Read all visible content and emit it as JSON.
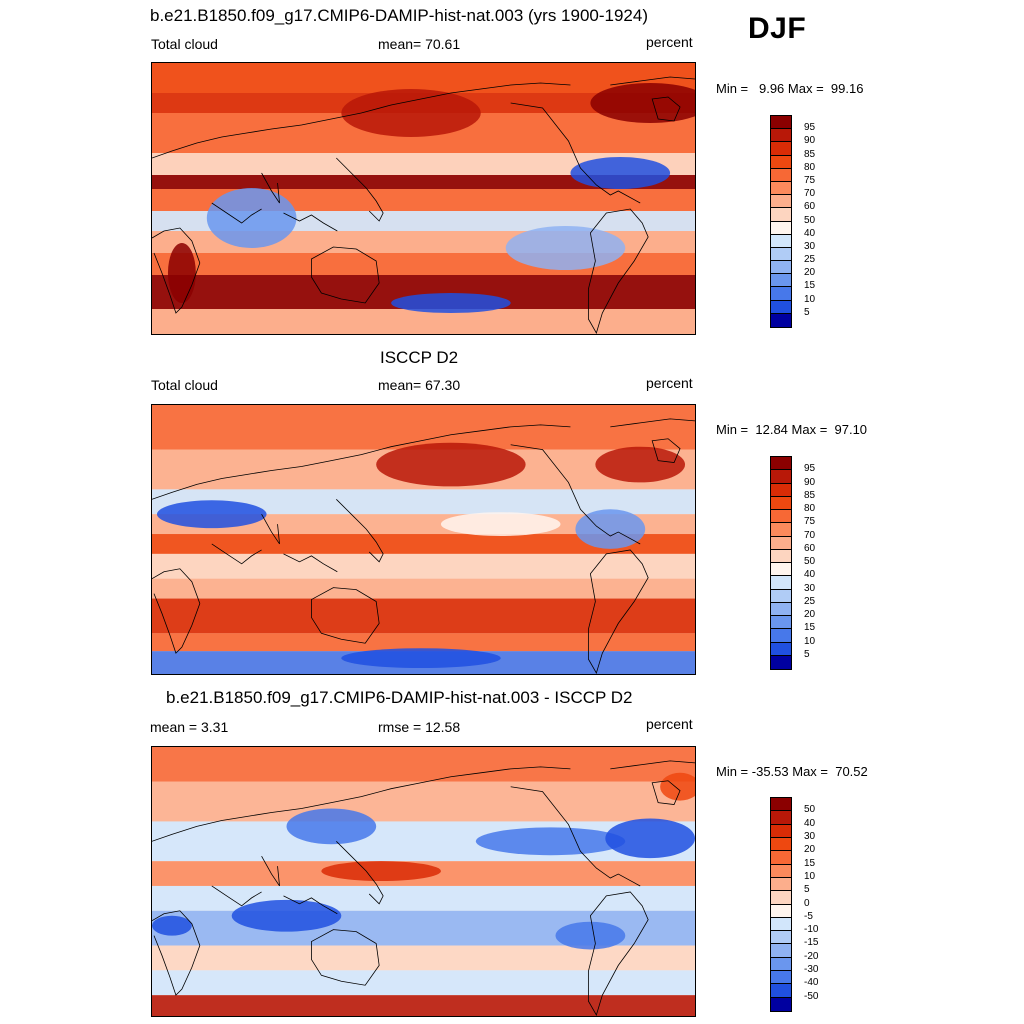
{
  "season": "DJF",
  "panels": [
    {
      "title": "b.e21.B1850.f09_g17.CMIP6-DAMIP-hist-nat.003 (yrs 1900-1924)",
      "left_label": "Total cloud",
      "center_label": "mean=  70.61",
      "right_label": "percent",
      "minmax": "Min =   9.96 Max =  99.16",
      "colorbar": {
        "ticks": [
          "95",
          "90",
          "85",
          "80",
          "75",
          "70",
          "60",
          "50",
          "40",
          "30",
          "25",
          "20",
          "15",
          "10",
          "5"
        ],
        "colors": [
          "#8b0000",
          "#b81808",
          "#d92c06",
          "#ee4810",
          "#f76835",
          "#fb8a5c",
          "#fcae8c",
          "#fdd5c0",
          "#fff5ee",
          "#d2e6fb",
          "#b0ccf6",
          "#8fb2f2",
          "#6a96ee",
          "#4778ea",
          "#2050e0",
          "#0000a0"
        ]
      },
      "map_style": "model"
    },
    {
      "title": "ISCCP D2",
      "left_label": "Total cloud",
      "center_label": "mean=  67.30",
      "right_label": "percent",
      "minmax": "Min =  12.84 Max =  97.10",
      "colorbar": {
        "ticks": [
          "95",
          "90",
          "85",
          "80",
          "75",
          "70",
          "60",
          "50",
          "40",
          "30",
          "25",
          "20",
          "15",
          "10",
          "5"
        ],
        "colors": [
          "#8b0000",
          "#b81808",
          "#d92c06",
          "#ee4810",
          "#f76835",
          "#fb8a5c",
          "#fcae8c",
          "#fdd5c0",
          "#fff5ee",
          "#d2e6fb",
          "#b0ccf6",
          "#8fb2f2",
          "#6a96ee",
          "#4778ea",
          "#2050e0",
          "#0000a0"
        ]
      },
      "map_style": "obs"
    },
    {
      "title": "b.e21.B1850.f09_g17.CMIP6-DAMIP-hist-nat.003 - ISCCP D2",
      "left_label": "mean =   3.31",
      "center_label": "rmse =  12.58",
      "right_label": "percent",
      "minmax": "Min = -35.53 Max =  70.52",
      "colorbar": {
        "ticks": [
          "50",
          "40",
          "30",
          "20",
          "15",
          "10",
          "5",
          "0",
          "-5",
          "-10",
          "-15",
          "-20",
          "-30",
          "-40",
          "-50"
        ],
        "colors": [
          "#8b0000",
          "#b81808",
          "#d92c06",
          "#ee4810",
          "#f76835",
          "#fb8a5c",
          "#fcae8c",
          "#fdd5c0",
          "#fff5ee",
          "#d2e6fb",
          "#b0ccf6",
          "#8fb2f2",
          "#6a96ee",
          "#4778ea",
          "#2050e0",
          "#0000a0"
        ]
      },
      "map_style": "diff"
    }
  ]
}
